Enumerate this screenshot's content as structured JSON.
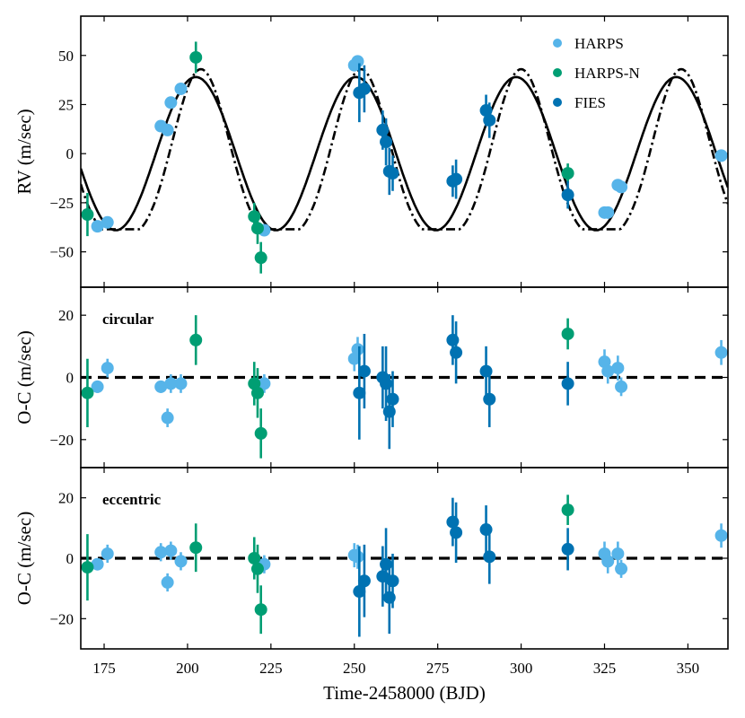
{
  "chart_data": [
    {
      "type": "scatter",
      "panel": "rv",
      "title": "",
      "xlabel": "Time-2458000 (BJD)",
      "ylabel": "RV (m/sec)",
      "xlim": [
        168,
        362
      ],
      "ylim": [
        -68,
        70
      ],
      "yticks": [
        50,
        25,
        0,
        -25,
        -50
      ],
      "ytick_labels": [
        "50",
        "25",
        "0",
        "−25",
        "−50"
      ],
      "xticks": [
        175,
        200,
        225,
        250,
        275,
        300,
        325,
        350
      ],
      "xtick_labels": [
        "175",
        "200",
        "225",
        "250",
        "275",
        "300",
        "325",
        "350"
      ],
      "legend": {
        "location": "top-right",
        "entries": [
          "HARPS",
          "HARPS-N",
          "FIES"
        ]
      },
      "series": [
        {
          "name": "HARPS",
          "color": "#56b4e9",
          "points": [
            {
              "x": 173,
              "y": -37,
              "err": 2
            },
            {
              "x": 176,
              "y": -35,
              "err": 2
            },
            {
              "x": 192,
              "y": 14,
              "err": 2
            },
            {
              "x": 194,
              "y": 12,
              "err": 2
            },
            {
              "x": 195,
              "y": 26,
              "err": 2
            },
            {
              "x": 198,
              "y": 33,
              "err": 2
            },
            {
              "x": 223,
              "y": -39,
              "err": 2
            },
            {
              "x": 250,
              "y": 45,
              "err": 3
            },
            {
              "x": 251,
              "y": 47,
              "err": 3
            },
            {
              "x": 325,
              "y": -30,
              "err": 3
            },
            {
              "x": 326,
              "y": -30,
              "err": 3
            },
            {
              "x": 329,
              "y": -16,
              "err": 3
            },
            {
              "x": 330,
              "y": -17,
              "err": 3
            },
            {
              "x": 360,
              "y": -1,
              "err": 3
            }
          ]
        },
        {
          "name": "HARPS-N",
          "color": "#009e73",
          "points": [
            {
              "x": 170,
              "y": -31,
              "err": 11
            },
            {
              "x": 202.5,
              "y": 49,
              "err": 8
            },
            {
              "x": 220,
              "y": -32,
              "err": 7
            },
            {
              "x": 221,
              "y": -38,
              "err": 8
            },
            {
              "x": 222,
              "y": -53,
              "err": 8
            },
            {
              "x": 314,
              "y": -10,
              "err": 5
            }
          ]
        },
        {
          "name": "FIES",
          "color": "#0072b2",
          "points": [
            {
              "x": 251.5,
              "y": 31,
              "err": 15
            },
            {
              "x": 253,
              "y": 33,
              "err": 12
            },
            {
              "x": 258.5,
              "y": 12,
              "err": 10
            },
            {
              "x": 259.5,
              "y": 6,
              "err": 12
            },
            {
              "x": 260.5,
              "y": -9,
              "err": 12
            },
            {
              "x": 261.5,
              "y": -10,
              "err": 9
            },
            {
              "x": 279.5,
              "y": -14,
              "err": 8
            },
            {
              "x": 280.5,
              "y": -13,
              "err": 10
            },
            {
              "x": 289.5,
              "y": 22,
              "err": 8
            },
            {
              "x": 290.5,
              "y": 17,
              "err": 9
            },
            {
              "x": 314,
              "y": -21,
              "err": 7
            }
          ]
        }
      ],
      "models": [
        {
          "style": "solid",
          "description": "circular fit",
          "amplitude": 39,
          "period": 48,
          "phase_x_at_max": 202.5
        },
        {
          "style": "dash-dot",
          "description": "eccentric fit",
          "amplitude": 43,
          "period": 48,
          "phase_x_at_max": 204
        }
      ]
    },
    {
      "type": "scatter",
      "panel": "residuals-circular",
      "annotation": "circular",
      "xlabel": "",
      "ylabel": "O-C (m/sec)",
      "xlim": [
        168,
        362
      ],
      "ylim": [
        -29,
        29
      ],
      "yticks": [
        20,
        0,
        -20
      ],
      "ytick_labels": [
        "20",
        "0",
        "−20"
      ],
      "reference_line": {
        "y": 0,
        "style": "dashed"
      },
      "series": [
        {
          "name": "HARPS",
          "color": "#56b4e9",
          "points": [
            {
              "x": 173,
              "y": -3,
              "err": 2
            },
            {
              "x": 176,
              "y": 3,
              "err": 3
            },
            {
              "x": 192,
              "y": -3,
              "err": 2
            },
            {
              "x": 194,
              "y": -13,
              "err": 3
            },
            {
              "x": 195,
              "y": -2,
              "err": 3
            },
            {
              "x": 198,
              "y": -2,
              "err": 3
            },
            {
              "x": 223,
              "y": -2,
              "err": 3
            },
            {
              "x": 250,
              "y": 6,
              "err": 4
            },
            {
              "x": 251,
              "y": 9,
              "err": 4
            },
            {
              "x": 325,
              "y": 5,
              "err": 4
            },
            {
              "x": 326,
              "y": 2,
              "err": 4
            },
            {
              "x": 329,
              "y": 3,
              "err": 4
            },
            {
              "x": 330,
              "y": -3,
              "err": 3
            },
            {
              "x": 360,
              "y": 8,
              "err": 4
            }
          ]
        },
        {
          "name": "HARPS-N",
          "color": "#009e73",
          "points": [
            {
              "x": 170,
              "y": -5,
              "err": 11
            },
            {
              "x": 202.5,
              "y": 12,
              "err": 8
            },
            {
              "x": 220,
              "y": -2,
              "err": 7
            },
            {
              "x": 221,
              "y": -5,
              "err": 8
            },
            {
              "x": 222,
              "y": -18,
              "err": 8
            },
            {
              "x": 314,
              "y": 14,
              "err": 5
            }
          ]
        },
        {
          "name": "FIES",
          "color": "#0072b2",
          "points": [
            {
              "x": 251.5,
              "y": -5,
              "err": 15
            },
            {
              "x": 253,
              "y": 2,
              "err": 12
            },
            {
              "x": 258.5,
              "y": 0,
              "err": 10
            },
            {
              "x": 259.5,
              "y": -2,
              "err": 12
            },
            {
              "x": 260.5,
              "y": -11,
              "err": 12
            },
            {
              "x": 261.5,
              "y": -7,
              "err": 9
            },
            {
              "x": 279.5,
              "y": 12,
              "err": 8
            },
            {
              "x": 280.5,
              "y": 8,
              "err": 10
            },
            {
              "x": 289.5,
              "y": 2,
              "err": 8
            },
            {
              "x": 290.5,
              "y": -7,
              "err": 9
            },
            {
              "x": 314,
              "y": -2,
              "err": 7
            }
          ]
        }
      ]
    },
    {
      "type": "scatter",
      "panel": "residuals-eccentric",
      "annotation": "eccentric",
      "xlabel": "Time-2458000 (BJD)",
      "ylabel": "O-C (m/sec)",
      "xlim": [
        168,
        362
      ],
      "ylim": [
        -30,
        30
      ],
      "yticks": [
        20,
        0,
        -20
      ],
      "ytick_labels": [
        "20",
        "0",
        "−20"
      ],
      "reference_line": {
        "y": 0,
        "style": "dashed"
      },
      "series": [
        {
          "name": "HARPS",
          "color": "#56b4e9",
          "points": [
            {
              "x": 173,
              "y": -2,
              "err": 2
            },
            {
              "x": 176,
              "y": 1.5,
              "err": 3
            },
            {
              "x": 192,
              "y": 2,
              "err": 3
            },
            {
              "x": 194,
              "y": -8,
              "err": 3
            },
            {
              "x": 195,
              "y": 2.5,
              "err": 3
            },
            {
              "x": 198,
              "y": -1,
              "err": 3
            },
            {
              "x": 223,
              "y": -2,
              "err": 3
            },
            {
              "x": 250,
              "y": 1,
              "err": 4
            },
            {
              "x": 251,
              "y": 0.5,
              "err": 4
            },
            {
              "x": 325,
              "y": 1.5,
              "err": 4
            },
            {
              "x": 326,
              "y": -1,
              "err": 4
            },
            {
              "x": 329,
              "y": 1.5,
              "err": 4
            },
            {
              "x": 330,
              "y": -3.5,
              "err": 3
            },
            {
              "x": 360,
              "y": 7.5,
              "err": 4
            }
          ]
        },
        {
          "name": "HARPS-N",
          "color": "#009e73",
          "points": [
            {
              "x": 170,
              "y": -3,
              "err": 11
            },
            {
              "x": 202.5,
              "y": 3.5,
              "err": 8
            },
            {
              "x": 220,
              "y": 0,
              "err": 7
            },
            {
              "x": 221,
              "y": -3.5,
              "err": 8
            },
            {
              "x": 222,
              "y": -17,
              "err": 8
            },
            {
              "x": 314,
              "y": 16,
              "err": 5
            }
          ]
        },
        {
          "name": "FIES",
          "color": "#0072b2",
          "points": [
            {
              "x": 251.5,
              "y": -11,
              "err": 15
            },
            {
              "x": 253,
              "y": -7.5,
              "err": 12
            },
            {
              "x": 258.5,
              "y": -6,
              "err": 10
            },
            {
              "x": 259.5,
              "y": -2,
              "err": 12
            },
            {
              "x": 260.5,
              "y": -13,
              "err": 12
            },
            {
              "x": 261.5,
              "y": -7.5,
              "err": 9
            },
            {
              "x": 279.5,
              "y": 12,
              "err": 8
            },
            {
              "x": 280.5,
              "y": 8.5,
              "err": 10
            },
            {
              "x": 289.5,
              "y": 9.5,
              "err": 8
            },
            {
              "x": 290.5,
              "y": 0.5,
              "err": 9
            },
            {
              "x": 314,
              "y": 3,
              "err": 7
            }
          ]
        }
      ]
    }
  ]
}
